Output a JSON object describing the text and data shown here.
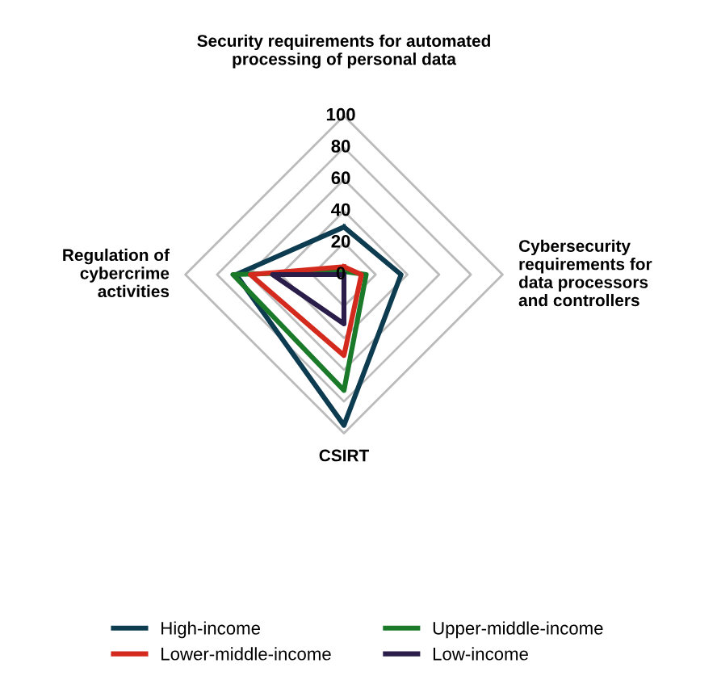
{
  "chart_data": {
    "type": "radar",
    "categories": [
      "Security requirements for automated\nprocessing of personal data",
      "Cybersecurity\nrequirements for\ndata processors\nand controllers",
      "CSIRT",
      "Regulation of\ncybercrime\nactivities"
    ],
    "series": [
      {
        "name": "High-income",
        "color": "#0d3b4f",
        "values": [
          30,
          36,
          95,
          68
        ]
      },
      {
        "name": "Upper-middle-income",
        "color": "#1a7a2a",
        "values": [
          2,
          14,
          73,
          70
        ]
      },
      {
        "name": "Lower-middle-income",
        "color": "#d42a1e",
        "values": [
          5,
          11,
          51,
          59
        ]
      },
      {
        "name": "Low-income",
        "color": "#2b1d4a",
        "values": [
          0,
          0,
          31,
          45
        ]
      }
    ],
    "ylim": [
      0,
      100
    ],
    "yticks": [
      0,
      20,
      40,
      60,
      80,
      100
    ],
    "grid": true,
    "legend": "bottom"
  }
}
